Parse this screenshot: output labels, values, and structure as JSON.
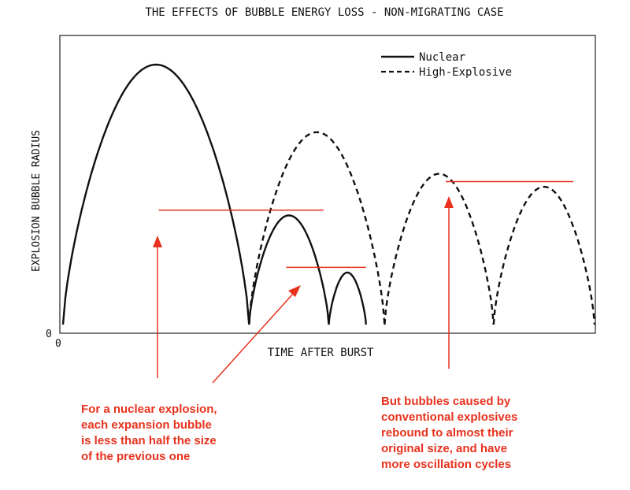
{
  "chart_data": {
    "type": "line",
    "title": "THE EFFECTS OF BUBBLE ENERGY LOSS - NON-MIGRATING CASE",
    "xlabel": "TIME AFTER BURST",
    "ylabel": "EXPLOSION BUBBLE RADIUS",
    "x_origin_label": "0",
    "y_origin_label": "0",
    "legend_position": "top-right",
    "legend": [
      {
        "label": "Nuclear",
        "style": "solid"
      },
      {
        "label": "High-Explosive",
        "style": "dashed"
      }
    ],
    "series": [
      {
        "name": "Nuclear",
        "style": "solid",
        "color": "#111111",
        "arches": [
          {
            "start": 0.0,
            "end": 0.35,
            "peak": 1.0
          },
          {
            "start": 0.35,
            "end": 0.5,
            "peak": 0.42
          },
          {
            "start": 0.5,
            "end": 0.57,
            "peak": 0.2
          }
        ]
      },
      {
        "name": "High-Explosive",
        "style": "dashed",
        "color": "#111111",
        "arches": [
          {
            "start": 0.35,
            "end": 0.605,
            "peak": 0.74
          },
          {
            "start": 0.605,
            "end": 0.81,
            "peak": 0.58
          },
          {
            "start": 0.81,
            "end": 1.0,
            "peak": 0.53
          }
        ]
      }
    ],
    "reference_lines": [
      {
        "x0": 0.18,
        "x1": 0.49,
        "y": 0.44
      },
      {
        "x0": 0.42,
        "x1": 0.57,
        "y": 0.22
      },
      {
        "x0": 0.72,
        "x1": 0.96,
        "y": 0.55
      }
    ],
    "annotations": [
      {
        "lines": [
          "For a nuclear explosion,",
          "each expansion bubble",
          "is less than half the size",
          "of the previous one"
        ],
        "color": "#e8321e"
      },
      {
        "lines": [
          "But bubbles caused by",
          "conventional explosives",
          "rebound to almost their",
          "original size, and have",
          "more oscillation cycles"
        ],
        "color": "#e8321e"
      }
    ]
  }
}
